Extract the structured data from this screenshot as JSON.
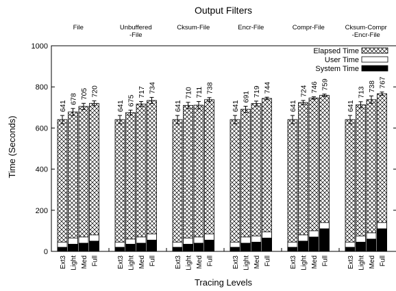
{
  "chart_data": {
    "type": "bar",
    "title": "Output Filters",
    "xlabel": "Tracing Levels",
    "ylabel": "Time (Seconds)",
    "ylim": [
      0,
      1000
    ],
    "yticks": [
      0,
      200,
      400,
      600,
      800,
      1000
    ],
    "grid": false,
    "legend_position": "top-right",
    "stacked": true,
    "legend": [
      "Elapsed Time",
      "User Time",
      "System Time"
    ],
    "categories": [
      "Ext3",
      "Light",
      "Med",
      "Full"
    ],
    "groups": [
      {
        "name_lines": [
          "File"
        ],
        "elapsed": [
          641,
          678,
          705,
          720
        ],
        "user": [
          25,
          30,
          30,
          30
        ],
        "system": [
          20,
          35,
          40,
          50
        ],
        "error": [
          20,
          17,
          15,
          12
        ]
      },
      {
        "name_lines": [
          "Unbuffered",
          "-File"
        ],
        "elapsed": [
          641,
          675,
          717,
          734
        ],
        "user": [
          25,
          25,
          30,
          30
        ],
        "system": [
          20,
          35,
          40,
          55
        ],
        "error": [
          20,
          12,
          12,
          15
        ]
      },
      {
        "name_lines": [
          "Cksum-File"
        ],
        "elapsed": [
          641,
          710,
          711,
          738
        ],
        "user": [
          25,
          30,
          30,
          30
        ],
        "system": [
          20,
          35,
          40,
          55
        ],
        "error": [
          20,
          15,
          18,
          10
        ]
      },
      {
        "name_lines": [
          "Encr-File"
        ],
        "elapsed": [
          641,
          691,
          719,
          744
        ],
        "user": [
          25,
          30,
          30,
          30
        ],
        "system": [
          20,
          40,
          45,
          65
        ],
        "error": [
          20,
          15,
          12,
          6
        ]
      },
      {
        "name_lines": [
          "Compr-File"
        ],
        "elapsed": [
          641,
          724,
          746,
          759
        ],
        "user": [
          25,
          30,
          30,
          30
        ],
        "system": [
          20,
          50,
          70,
          110
        ],
        "error": [
          20,
          10,
          6,
          6
        ]
      },
      {
        "name_lines": [
          "Cksum-Compr",
          "-Encr-File"
        ],
        "elapsed": [
          641,
          713,
          738,
          767
        ],
        "user": [
          25,
          30,
          30,
          30
        ],
        "system": [
          20,
          45,
          60,
          110
        ],
        "error": [
          20,
          15,
          18,
          8
        ]
      }
    ]
  }
}
